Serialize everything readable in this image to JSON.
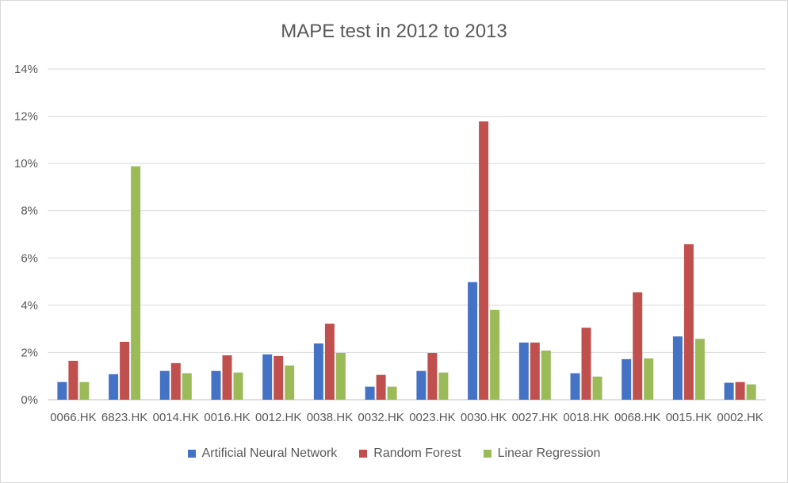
{
  "chart_data": {
    "type": "bar",
    "title": "MAPE test in 2012 to 2013",
    "xlabel": "",
    "ylabel": "",
    "ylim": [
      0,
      0.14
    ],
    "y_ticks": [
      "0%",
      "2%",
      "4%",
      "6%",
      "8%",
      "10%",
      "12%",
      "14%"
    ],
    "grid": true,
    "legend_position": "bottom",
    "categories": [
      "0066.HK",
      "6823.HK",
      "0014.HK",
      "0016.HK",
      "0012.HK",
      "0038.HK",
      "0032.HK",
      "0023.HK",
      "0030.HK",
      "0027.HK",
      "0018.HK",
      "0068.HK",
      "0015.HK",
      "0002.HK"
    ],
    "series": [
      {
        "name": "Artificial Neural Network",
        "color": "#4472c4",
        "values": [
          0.0075,
          0.0108,
          0.0122,
          0.0122,
          0.0192,
          0.0238,
          0.0055,
          0.0122,
          0.0498,
          0.0242,
          0.0112,
          0.0172,
          0.0268,
          0.0072
        ]
      },
      {
        "name": "Random Forest",
        "color": "#c0504d",
        "values": [
          0.0165,
          0.0245,
          0.0155,
          0.0188,
          0.0185,
          0.0322,
          0.0105,
          0.0198,
          0.1178,
          0.0242,
          0.0305,
          0.0455,
          0.0658,
          0.0075
        ]
      },
      {
        "name": "Linear Regression",
        "color": "#9bbb59",
        "values": [
          0.0075,
          0.0988,
          0.0112,
          0.0115,
          0.0145,
          0.0198,
          0.0055,
          0.0115,
          0.038,
          0.0208,
          0.0098,
          0.0175,
          0.0258,
          0.0065
        ]
      }
    ]
  }
}
